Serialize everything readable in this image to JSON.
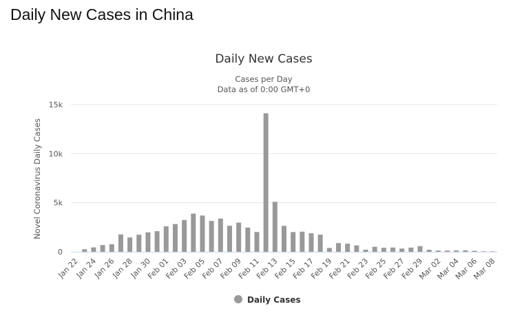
{
  "page_title": "Daily New Cases in China",
  "chart_data": {
    "type": "bar",
    "title": "Daily New Cases",
    "subtitle_lines": [
      "Cases per Day",
      "Data as of 0:00 GMT+0"
    ],
    "ylabel": "Novel Coronavirus Daily Cases",
    "xlabel": "",
    "ylim": [
      0,
      15000
    ],
    "yticks": [
      {
        "v": 0,
        "label": "0"
      },
      {
        "v": 5000,
        "label": "5k"
      },
      {
        "v": 10000,
        "label": "10k"
      },
      {
        "v": 15000,
        "label": "15k"
      }
    ],
    "categories": [
      "Jan 22",
      "Jan 23",
      "Jan 24",
      "Jan 25",
      "Jan 26",
      "Jan 27",
      "Jan 28",
      "Jan 29",
      "Jan 30",
      "Jan 31",
      "Feb 01",
      "Feb 02",
      "Feb 03",
      "Feb 04",
      "Feb 05",
      "Feb 06",
      "Feb 07",
      "Feb 08",
      "Feb 09",
      "Feb 10",
      "Feb 11",
      "Feb 12",
      "Feb 13",
      "Feb 14",
      "Feb 15",
      "Feb 16",
      "Feb 17",
      "Feb 18",
      "Feb 19",
      "Feb 20",
      "Feb 21",
      "Feb 22",
      "Feb 23",
      "Feb 24",
      "Feb 25",
      "Feb 26",
      "Feb 27",
      "Feb 28",
      "Feb 29",
      "Mar 01",
      "Mar 02",
      "Mar 03",
      "Mar 04",
      "Mar 05",
      "Mar 06",
      "Mar 07",
      "Mar 08"
    ],
    "series": [
      {
        "name": "Daily Cases",
        "color": "#999999",
        "values": [
          0,
          259,
          444,
          688,
          769,
          1771,
          1459,
          1737,
          1981,
          2099,
          2589,
          2825,
          3235,
          3884,
          3694,
          3143,
          3385,
          2652,
          2973,
          2467,
          2015,
          14108,
          5090,
          2641,
          2008,
          2048,
          1886,
          1749,
          391,
          889,
          823,
          648,
          214,
          508,
          406,
          433,
          327,
          427,
          573,
          202,
          125,
          119,
          139,
          143,
          99,
          44,
          40
        ]
      }
    ],
    "legend_position": "bottom-center",
    "grid": true
  }
}
